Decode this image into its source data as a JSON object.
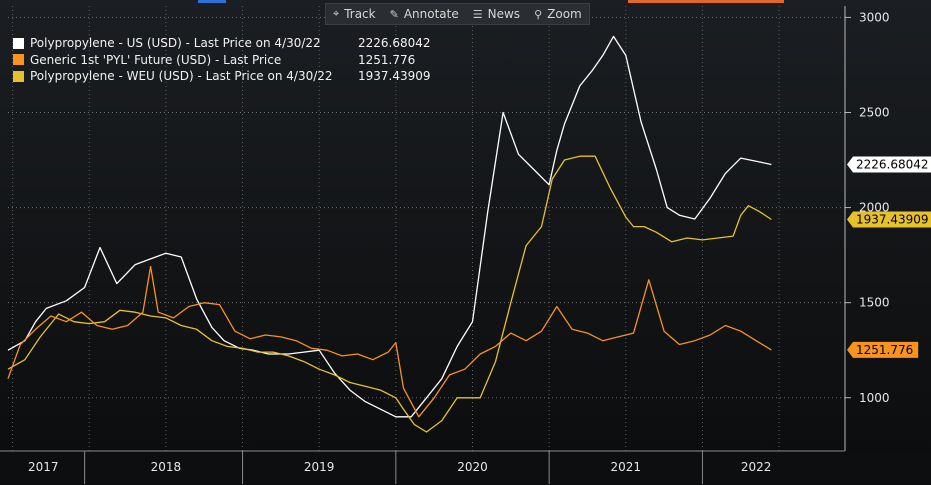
{
  "toolbar": {
    "items": [
      {
        "label": "Track",
        "icon": "crosshair-icon"
      },
      {
        "label": "Annotate",
        "icon": "pencil-icon"
      },
      {
        "label": "News",
        "icon": "news-icon"
      },
      {
        "label": "Zoom",
        "icon": "magnifier-icon"
      }
    ]
  },
  "legend": [
    {
      "label": "Polypropylene - US (USD) - Last Price on 4/30/22",
      "value": "2226.68042",
      "color": "#ffffff"
    },
    {
      "label": "Generic 1st 'PYL' Future (USD) - Last Price",
      "value": "1251.776",
      "color": "#f7931e"
    },
    {
      "label": "Polypropylene - WEU (USD) - Last Price on 4/30/22",
      "value": "1937.43909",
      "color": "#e6c12c"
    }
  ],
  "chart_data": {
    "type": "line",
    "title": "",
    "xlabel": "",
    "ylabel": "",
    "xlim": [
      2016.97,
      2022.43
    ],
    "ylim": [
      720,
      3060
    ],
    "yticks": [
      1000,
      1500,
      2000,
      2500,
      3000
    ],
    "ytick_labels": [
      "1000",
      "1500",
      "2000",
      "2500",
      "3000"
    ],
    "year_labels": [
      {
        "label": "2017",
        "x": 2017.2
      },
      {
        "label": "2018",
        "x": 2018.0
      },
      {
        "label": "2019",
        "x": 2019.0
      },
      {
        "label": "2020",
        "x": 2020.0
      },
      {
        "label": "2021",
        "x": 2021.0
      },
      {
        "label": "2022",
        "x": 2021.85
      }
    ],
    "year_boundaries": [
      2017.47,
      2018.5,
      2019.5,
      2020.5,
      2021.5
    ],
    "vgrid": [
      2017.0,
      2017.5,
      2018.0,
      2018.5,
      2019.0,
      2019.5,
      2020.0,
      2020.5,
      2021.0,
      2021.5,
      2022.0
    ],
    "last_value_tags": [
      {
        "text": "2226.68042",
        "value": 2226.68042,
        "bg": "#ffffff",
        "fg": "#000000"
      },
      {
        "text": "1937.43909",
        "value": 1937.43909,
        "bg": "#e6c12c",
        "fg": "#000000"
      },
      {
        "text": "1251.776",
        "value": 1251.776,
        "bg": "#f7931e",
        "fg": "#000000"
      }
    ],
    "series": [
      {
        "name": "Polypropylene - US (USD)",
        "color": "#ffffff",
        "x": [
          2016.97,
          2017.08,
          2017.15,
          2017.22,
          2017.35,
          2017.47,
          2017.57,
          2017.68,
          2017.8,
          2017.9,
          2018.0,
          2018.1,
          2018.2,
          2018.3,
          2018.38,
          2018.48,
          2018.57,
          2018.67,
          2018.8,
          2018.9,
          2019.0,
          2019.1,
          2019.2,
          2019.3,
          2019.4,
          2019.5,
          2019.6,
          2019.7,
          2019.8,
          2019.9,
          2020.0,
          2020.1,
          2020.2,
          2020.3,
          2020.4,
          2020.5,
          2020.55,
          2020.6,
          2020.63,
          2020.7,
          2020.78,
          2020.85,
          2020.92,
          2021.0,
          2021.1,
          2021.2,
          2021.27,
          2021.35,
          2021.45,
          2021.55,
          2021.65,
          2021.75,
          2021.87,
          2021.95
        ],
        "values": [
          1250,
          1300,
          1400,
          1470,
          1510,
          1580,
          1790,
          1600,
          1700,
          1730,
          1760,
          1740,
          1520,
          1370,
          1300,
          1260,
          1250,
          1230,
          1230,
          1240,
          1250,
          1130,
          1040,
          980,
          940,
          900,
          900,
          1000,
          1100,
          1270,
          1400,
          1980,
          2500,
          2280,
          2200,
          2120,
          2300,
          2440,
          2500,
          2640,
          2720,
          2800,
          2900,
          2800,
          2450,
          2200,
          2000,
          1960,
          1940,
          2050,
          2180,
          2260,
          2240,
          2226.68
        ]
      },
      {
        "name": "Polypropylene - WEU (USD)",
        "color": "#e6c12c",
        "x": [
          2016.97,
          2017.08,
          2017.18,
          2017.3,
          2017.4,
          2017.5,
          2017.6,
          2017.7,
          2017.8,
          2017.9,
          2018.0,
          2018.1,
          2018.2,
          2018.3,
          2018.4,
          2018.5,
          2018.6,
          2018.7,
          2018.8,
          2018.9,
          2019.0,
          2019.1,
          2019.2,
          2019.3,
          2019.4,
          2019.5,
          2019.55,
          2019.62,
          2019.7,
          2019.8,
          2019.9,
          2019.97,
          2020.05,
          2020.15,
          2020.25,
          2020.35,
          2020.45,
          2020.52,
          2020.6,
          2020.7,
          2020.8,
          2020.9,
          2021.0,
          2021.05,
          2021.12,
          2021.2,
          2021.3,
          2021.4,
          2021.5,
          2021.6,
          2021.7,
          2021.75,
          2021.8,
          2021.87,
          2021.95
        ],
        "values": [
          1150,
          1200,
          1320,
          1440,
          1400,
          1390,
          1400,
          1460,
          1450,
          1430,
          1420,
          1380,
          1360,
          1300,
          1270,
          1260,
          1240,
          1240,
          1220,
          1190,
          1150,
          1120,
          1080,
          1060,
          1040,
          1000,
          940,
          860,
          820,
          880,
          1000,
          1000,
          1000,
          1190,
          1500,
          1800,
          1900,
          2150,
          2250,
          2270,
          2270,
          2100,
          1950,
          1900,
          1900,
          1870,
          1820,
          1840,
          1830,
          1840,
          1850,
          1960,
          2010,
          1980,
          1937.44
        ]
      },
      {
        "name": "Generic 1st 'PYL' Future (USD)",
        "color": "#f7931e",
        "x": [
          2016.97,
          2017.05,
          2017.15,
          2017.25,
          2017.35,
          2017.45,
          2017.55,
          2017.65,
          2017.75,
          2017.85,
          2017.9,
          2017.95,
          2018.05,
          2018.15,
          2018.25,
          2018.35,
          2018.45,
          2018.55,
          2018.65,
          2018.75,
          2018.85,
          2018.95,
          2019.05,
          2019.15,
          2019.25,
          2019.35,
          2019.45,
          2019.5,
          2019.55,
          2019.65,
          2019.75,
          2019.85,
          2019.95,
          2020.05,
          2020.15,
          2020.25,
          2020.35,
          2020.45,
          2020.55,
          2020.65,
          2020.75,
          2020.85,
          2020.95,
          2021.05,
          2021.15,
          2021.25,
          2021.35,
          2021.45,
          2021.55,
          2021.65,
          2021.75,
          2021.85,
          2021.95
        ],
        "values": [
          1100,
          1280,
          1360,
          1430,
          1400,
          1450,
          1380,
          1360,
          1380,
          1450,
          1690,
          1450,
          1420,
          1480,
          1500,
          1490,
          1350,
          1310,
          1330,
          1320,
          1300,
          1260,
          1250,
          1220,
          1230,
          1200,
          1240,
          1290,
          1050,
          900,
          1000,
          1120,
          1150,
          1230,
          1270,
          1340,
          1300,
          1350,
          1480,
          1360,
          1340,
          1300,
          1320,
          1340,
          1620,
          1350,
          1280,
          1300,
          1330,
          1380,
          1350,
          1300,
          1251.78
        ]
      }
    ]
  }
}
